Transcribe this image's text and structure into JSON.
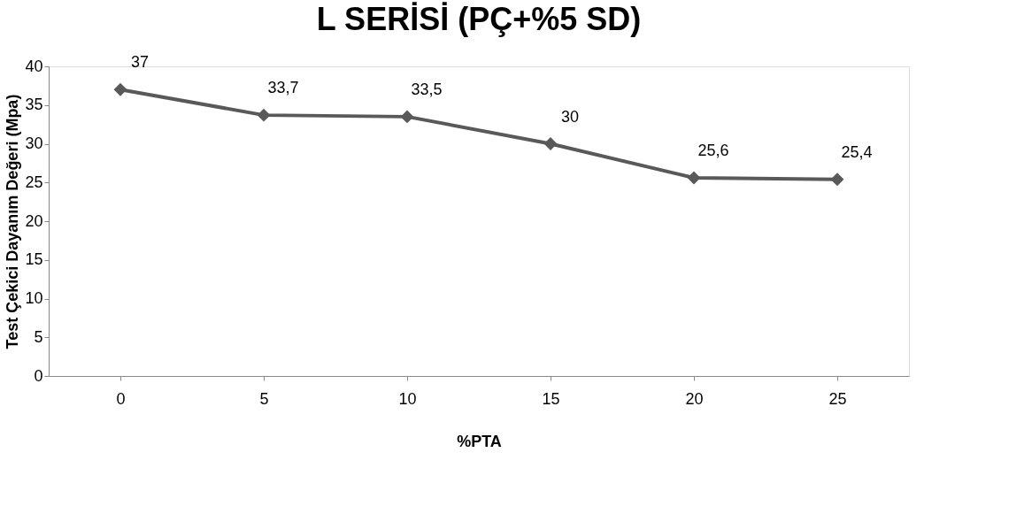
{
  "chart_data": {
    "type": "line",
    "title": "L SERİSİ (PÇ+%5 SD)",
    "xlabel": "%PTA",
    "ylabel": "Test Çekici Dayanım Değeri (Mpa)",
    "categories": [
      "0",
      "5",
      "10",
      "15",
      "20",
      "25"
    ],
    "values": [
      37,
      33.7,
      33.5,
      30,
      25.6,
      25.4
    ],
    "value_labels": [
      "37",
      "33,7",
      "33,5",
      "30",
      "25,6",
      "25,4"
    ],
    "color": "#595959",
    "marker": "diamond",
    "line_style": "solid",
    "ylim": [
      0,
      40
    ],
    "yticks": [
      0,
      5,
      10,
      15,
      20,
      25,
      30,
      35,
      40
    ]
  }
}
